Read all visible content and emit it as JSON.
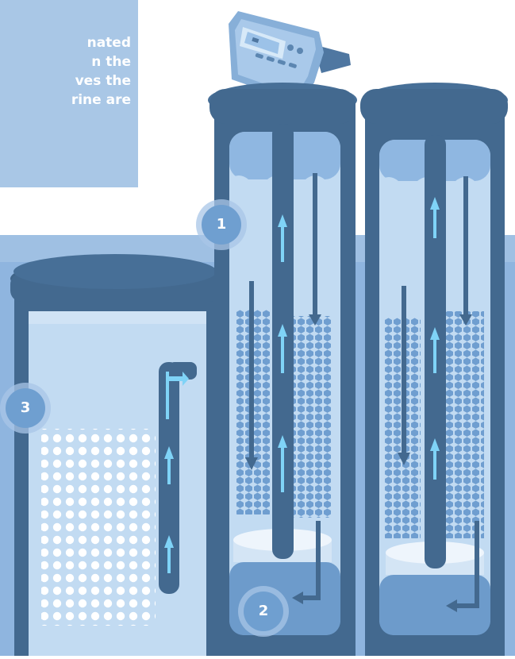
{
  "caption": {
    "lines": [
      "nated",
      "n the",
      "ves the",
      "rine are"
    ]
  },
  "steps": {
    "step1": "1",
    "step2": "2",
    "step3": "3"
  },
  "colors": {
    "background_band": "#9fc0e3",
    "tank_dark": "#43698f",
    "tank_inner": "#c2dbf2",
    "resin_bead": "#6f9ed0",
    "salt_pellet": "#ffffff",
    "arrow_up": "#7fd3f7",
    "caption_box": "#a9c7e6",
    "badge": "#6f9fd0"
  },
  "icons": {
    "control_valve": "control-head-icon",
    "flow_arrow": "arrow-icon"
  }
}
